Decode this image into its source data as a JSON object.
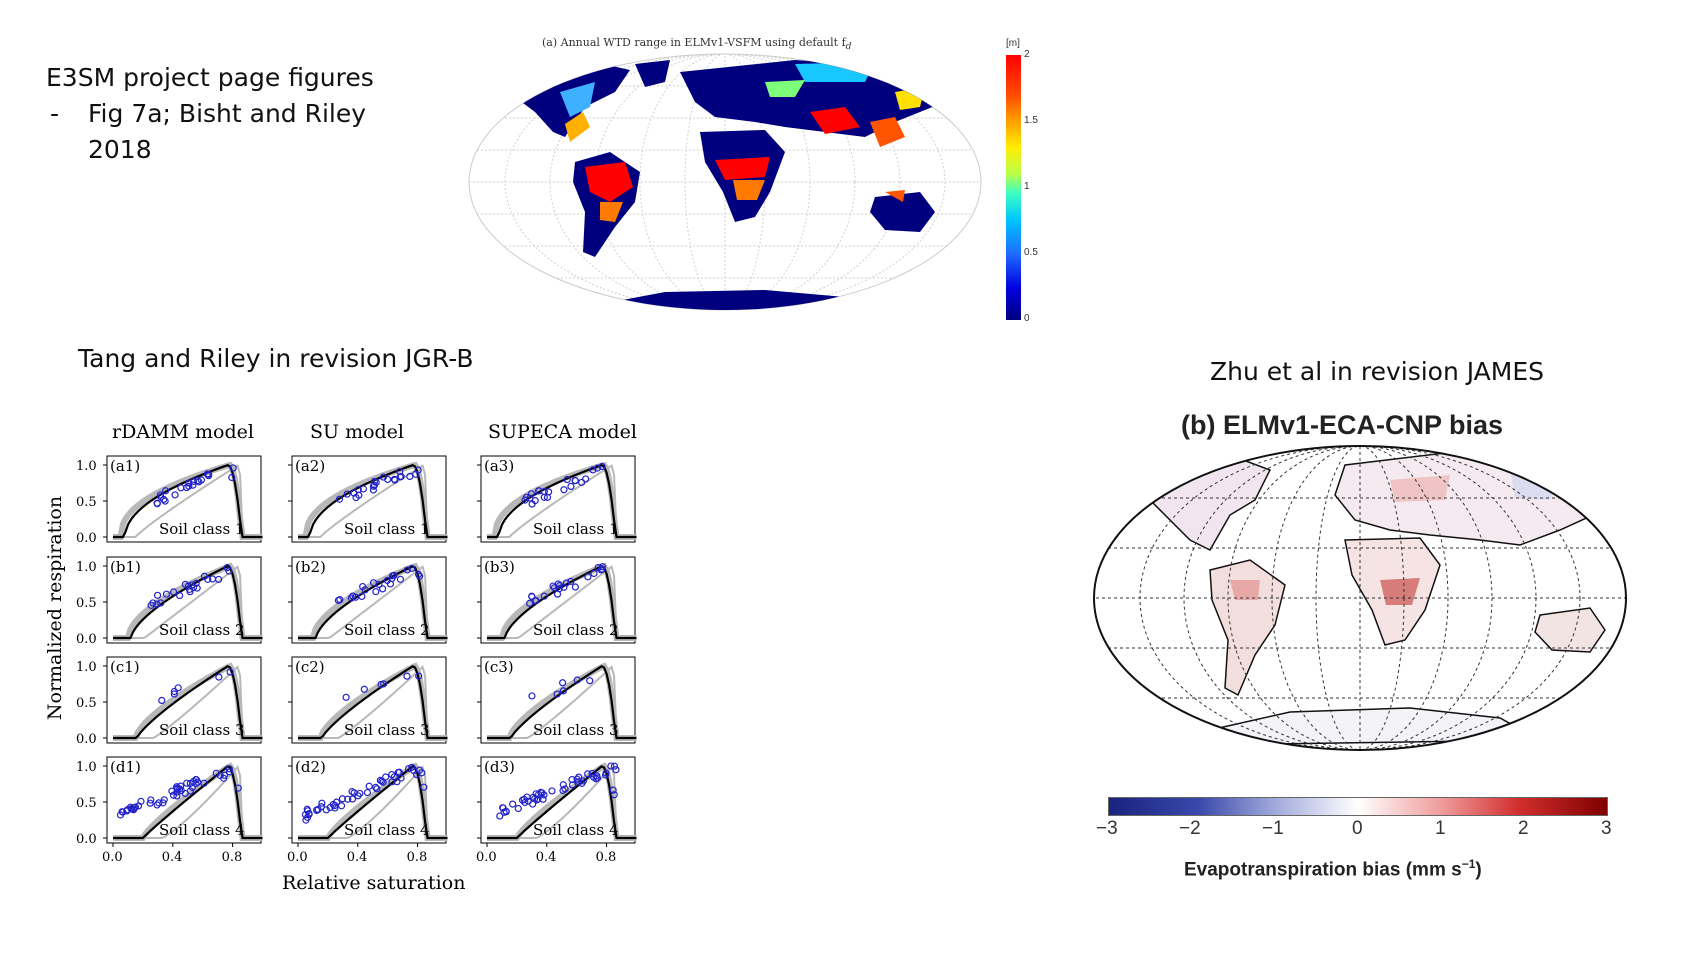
{
  "slide": {
    "header_line1": "E3SM project page figures",
    "bullet_dash": "-",
    "bullet_line1": "Fig 7a; Bisht and Riley",
    "bullet_line2": "2018",
    "tang_caption": "Tang and Riley in revision JGR-B",
    "zhu_caption": "Zhu et al in revision JAMES"
  },
  "fig_wtd": {
    "title": "(a) Annual WTD range in ELMv1-VSFM using default f",
    "title_subscript": "d",
    "unit": "[m]",
    "colorbar_ticks": [
      "2",
      "1.5",
      "1",
      "0.5",
      "0"
    ],
    "colorbar_range": [
      0,
      2
    ],
    "colors": {
      "low": "#00007f",
      "mid": "#3fffbf",
      "high": "#ff0000"
    }
  },
  "fig_resp": {
    "column_titles": [
      "rDAMM model",
      "SU model",
      "SUPECA model"
    ],
    "ylabel": "Normalized respiration",
    "xlabel": "Relative saturation",
    "xticks": [
      "0.0",
      "0.4",
      "0.8"
    ],
    "yticks": [
      "1.0",
      "0.5",
      "0.0"
    ],
    "panel_labels": [
      [
        "(a1)",
        "(a2)",
        "(a3)"
      ],
      [
        "(b1)",
        "(b2)",
        "(b3)"
      ],
      [
        "(c1)",
        "(c2)",
        "(c3)"
      ],
      [
        "(d1)",
        "(d2)",
        "(d3)"
      ]
    ],
    "soil_classes": [
      "Soil class 1",
      "Soil class 2",
      "Soil class 3",
      "Soil class 4"
    ],
    "marker_color": "#2222cc"
  },
  "fig_bias": {
    "title": "(b) ELMv1-ECA-CNP bias",
    "colorbar_label": "Evapotranspiration bias (mm s",
    "colorbar_label_sup": "−1",
    "colorbar_label_end": ")",
    "colorbar_ticks": [
      "−3",
      "−2",
      "−1",
      "0",
      "1",
      "2",
      "3"
    ],
    "colorbar_range": [
      -3,
      3
    ],
    "colors": {
      "negative": "#1a237e",
      "neutral": "#ffffff",
      "positive": "#7f0000"
    }
  }
}
